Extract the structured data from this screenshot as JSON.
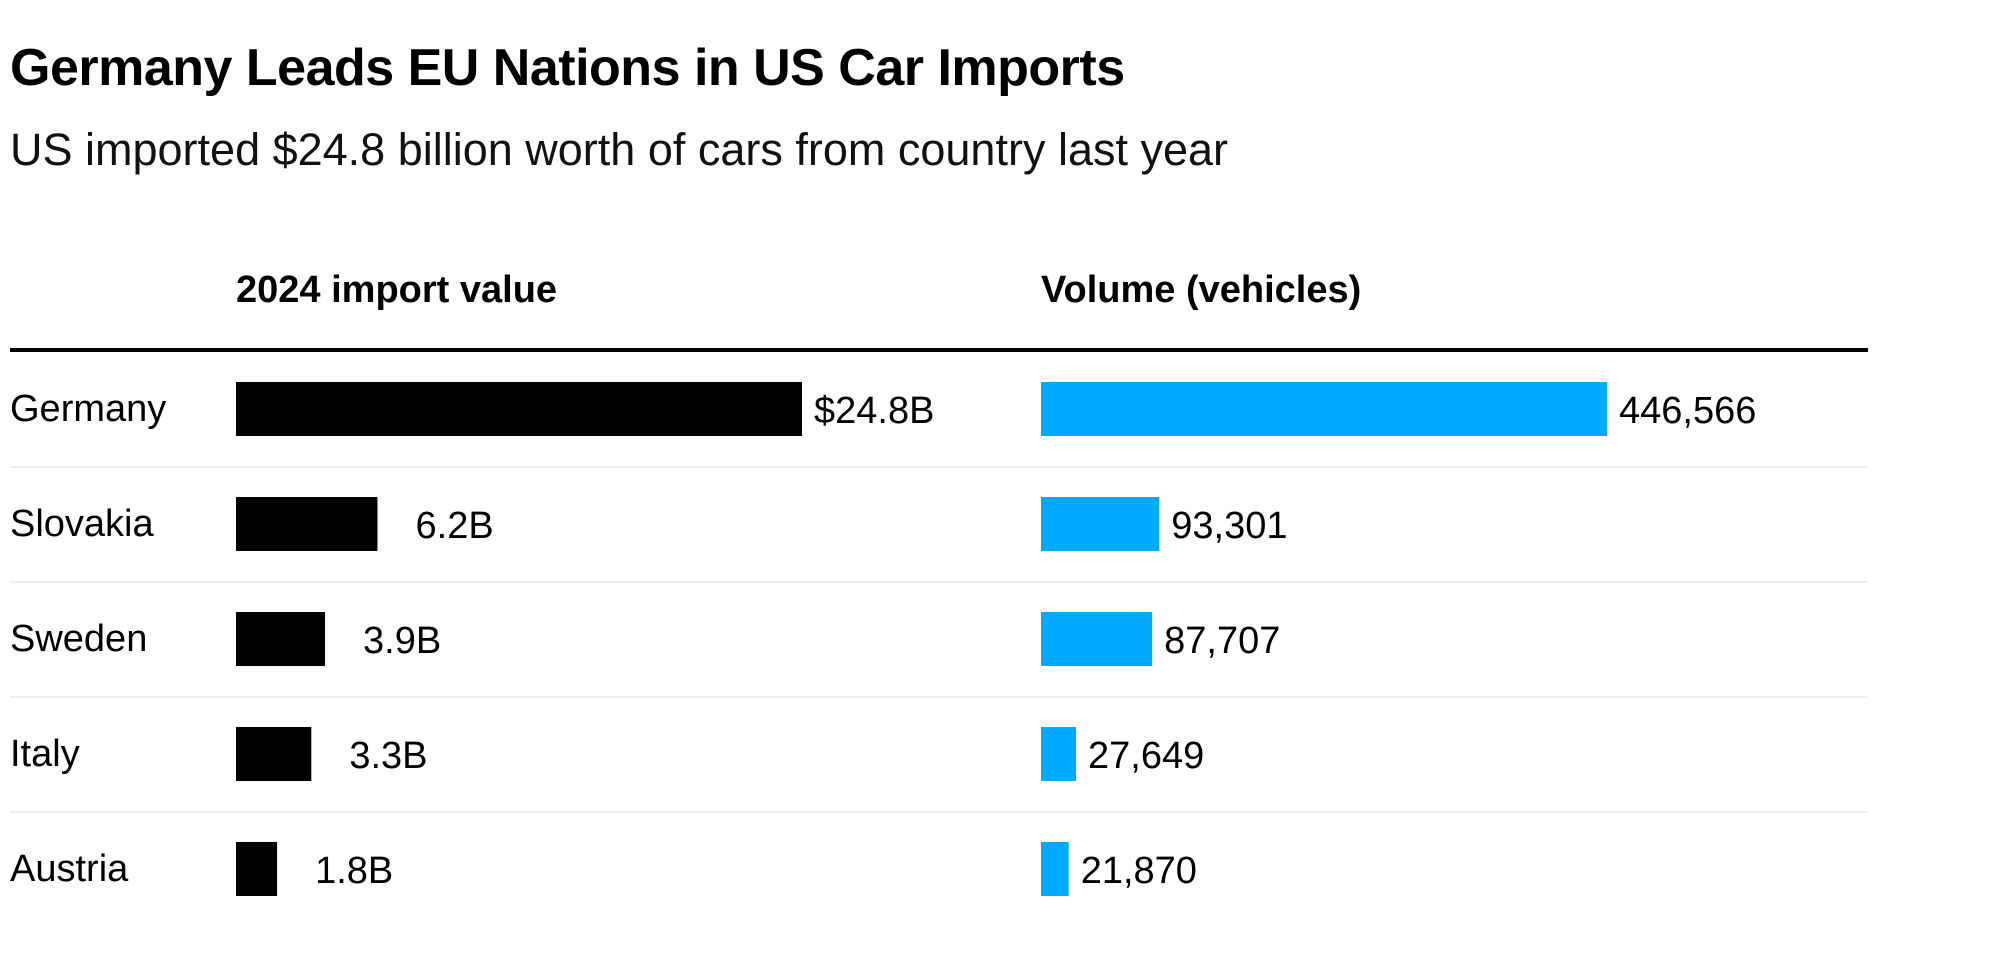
{
  "title": "Germany Leads EU Nations in US Car Imports",
  "subtitle": "US imported $24.8 billion worth of cars from country last year",
  "colors": {
    "value_bar": "#000000",
    "volume_bar": "#00aaff",
    "divider": "#000000",
    "row_rule": "#eeeeee"
  },
  "chart_data": {
    "type": "bar",
    "orientation": "horizontal",
    "categories": [
      "Germany",
      "Slovakia",
      "Sweden",
      "Italy",
      "Austria"
    ],
    "series": [
      {
        "name": "2024 import value",
        "values": [
          24.8,
          6.2,
          3.9,
          3.3,
          1.8
        ],
        "labels": [
          "$24.8B",
          "6.2B",
          "3.9B",
          "3.3B",
          "1.8B"
        ],
        "color": "#000000"
      },
      {
        "name": "Volume (vehicles)",
        "values": [
          446566,
          93301,
          87707,
          27649,
          21870
        ],
        "labels": [
          "446,566",
          "93,301",
          "87,707",
          "27,649",
          "21,870"
        ],
        "color": "#00aaff"
      }
    ],
    "legend": "none",
    "grid": false
  }
}
